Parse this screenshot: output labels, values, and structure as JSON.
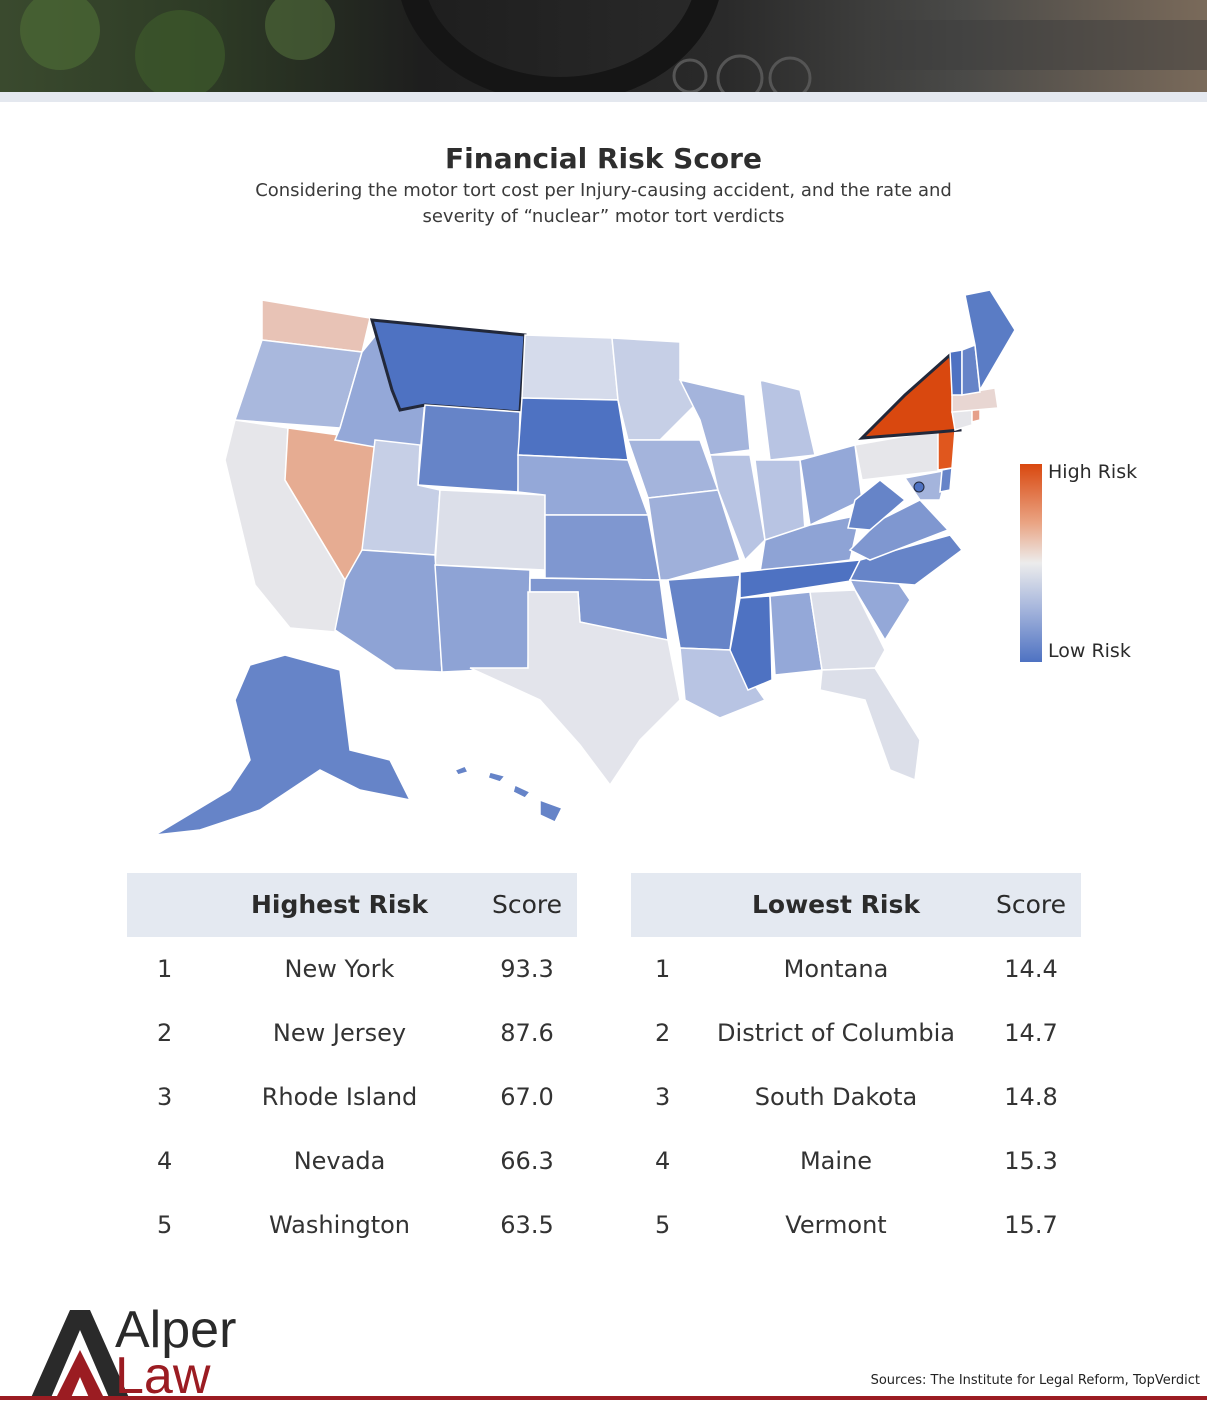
{
  "header": {
    "title": "Financial Risk Score",
    "subtitle_line1": "Considering the motor tort cost per Injury-causing accident, and the rate and",
    "subtitle_line2": "severity of “nuclear” motor tort verdicts"
  },
  "legend": {
    "high": "High Risk",
    "low": "Low Risk",
    "high_color": "#d9480f",
    "low_color": "#4e72c2"
  },
  "highest_table": {
    "header_label": "Highest Risk",
    "header_score": "Score",
    "rows": [
      {
        "rank": "1",
        "state": "New York",
        "score": "93.3"
      },
      {
        "rank": "2",
        "state": "New Jersey",
        "score": "87.6"
      },
      {
        "rank": "3",
        "state": "Rhode Island",
        "score": "67.0"
      },
      {
        "rank": "4",
        "state": "Nevada",
        "score": "66.3"
      },
      {
        "rank": "5",
        "state": "Washington",
        "score": "63.5"
      }
    ]
  },
  "lowest_table": {
    "header_label": "Lowest Risk",
    "header_score": "Score",
    "rows": [
      {
        "rank": "1",
        "state": "Montana",
        "score": "14.4"
      },
      {
        "rank": "2",
        "state": "District of Columbia",
        "score": "14.7"
      },
      {
        "rank": "3",
        "state": "South Dakota",
        "score": "14.8"
      },
      {
        "rank": "4",
        "state": "Maine",
        "score": "15.3"
      },
      {
        "rank": "5",
        "state": "Vermont",
        "score": "15.7"
      }
    ]
  },
  "brand": {
    "line1": "Alper",
    "line2": "Law",
    "accent": "#9b1c22"
  },
  "source": "Sources: The Institute for Legal Reform, TopVerdict"
}
